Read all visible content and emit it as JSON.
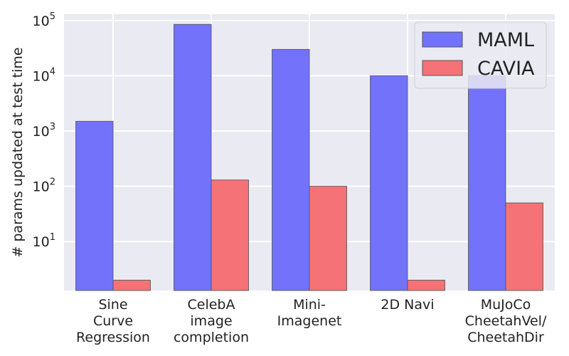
{
  "chart_data": {
    "type": "bar",
    "title": "",
    "xlabel": "",
    "ylabel": "# params updated at test time",
    "yscale": "log",
    "ylim": [
      1.3,
      130000
    ],
    "yticks": [
      {
        "value": 10,
        "base": "10",
        "exp": "1"
      },
      {
        "value": 100,
        "base": "10",
        "exp": "2"
      },
      {
        "value": 1000,
        "base": "10",
        "exp": "3"
      },
      {
        "value": 10000,
        "base": "10",
        "exp": "4"
      },
      {
        "value": 100000,
        "base": "10",
        "exp": "5"
      }
    ],
    "grid": true,
    "legend_position": "top-right",
    "categories": [
      [
        "Sine",
        "Curve",
        "Regression"
      ],
      [
        "CelebA",
        "image",
        "completion"
      ],
      [
        "Mini-",
        "Imagenet"
      ],
      [
        "2D Navi"
      ],
      [
        "MuJoCo",
        "CheetahVel/",
        "CheetahDir"
      ]
    ],
    "series": [
      {
        "name": "MAML",
        "color": "#7272fb",
        "values": [
          1500,
          85000,
          30000,
          10000,
          10000
        ]
      },
      {
        "name": "CAVIA",
        "color": "#f57276",
        "values": [
          2,
          130,
          100,
          2,
          50
        ]
      }
    ]
  }
}
